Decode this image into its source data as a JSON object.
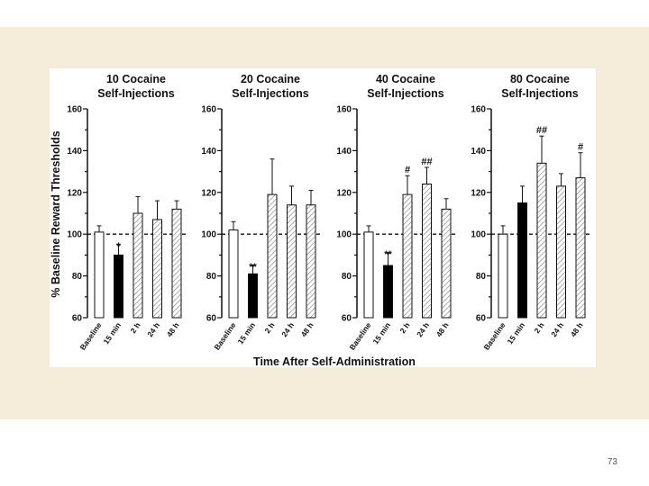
{
  "page": {
    "number": "73"
  },
  "colors": {
    "background_band": "#f6ecda",
    "control_bar": "#ffffff",
    "drug_bar": "#000000",
    "post_bar_hatch": "#999999"
  },
  "chart_data": {
    "type": "bar",
    "ylabel": "% Baseline Reward Thresholds",
    "xlabel": "Time After Self-Administration",
    "ylim": [
      60,
      160
    ],
    "yticks": [
      "60",
      "80",
      "100",
      "120",
      "140",
      "160"
    ],
    "categories": [
      "Baseline",
      "15 min",
      "2 h",
      "24 h",
      "48 h"
    ],
    "baseline_reference": 100,
    "panels": [
      {
        "title_lines": [
          "10 Cocaine",
          "Self-Injections"
        ],
        "values": [
          101,
          90,
          110,
          107,
          112
        ],
        "errors": [
          3,
          5,
          8,
          9,
          4
        ],
        "markers": [
          "",
          "*",
          "",
          "",
          ""
        ]
      },
      {
        "title_lines": [
          "20 Cocaine",
          "Self-Injections"
        ],
        "values": [
          102,
          81,
          119,
          114,
          114
        ],
        "errors": [
          4,
          4,
          17,
          9,
          7
        ],
        "markers": [
          "",
          "**",
          "",
          "",
          ""
        ]
      },
      {
        "title_lines": [
          "40 Cocaine",
          "Self-Injections"
        ],
        "values": [
          101,
          85,
          119,
          124,
          112
        ],
        "errors": [
          3,
          6,
          9,
          8,
          5
        ],
        "markers": [
          "",
          "**",
          "#",
          "##",
          ""
        ]
      },
      {
        "title_lines": [
          "80 Cocaine",
          "Self-Injections"
        ],
        "values": [
          100,
          115,
          134,
          123,
          127
        ],
        "errors": [
          4,
          8,
          13,
          6,
          12
        ],
        "markers": [
          "",
          "",
          "##",
          "",
          "#"
        ]
      }
    ]
  }
}
